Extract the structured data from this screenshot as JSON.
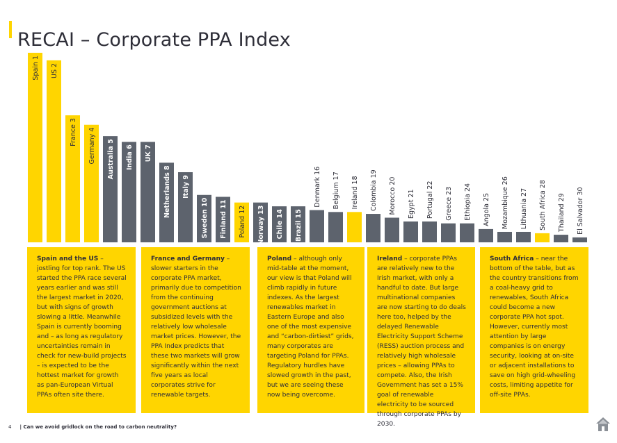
{
  "header": {
    "title": "RECAI – Corporate PPA Index"
  },
  "colors": {
    "highlight": "#FFD500",
    "bar": "#5d636d",
    "text": "#2e2e38"
  },
  "chart_data": {
    "type": "bar",
    "title": "RECAI – Corporate PPA Index",
    "note": "Bar heights are relative index scores (Spain = 100), estimated; no axis shown",
    "categories": [
      "Spain 1",
      "US 2",
      "France 3",
      "Germany 4",
      "Australia 5",
      "India 6",
      "UK 7",
      "Netherlands 8",
      "Italy 9",
      "Sweden 10",
      "Finland 11",
      "Poland 12",
      "Norway 13",
      "Chile 14",
      "Brazil 15",
      "Denmark 16",
      "Belgium 17",
      "Ireland 18",
      "Colombia 19",
      "Morocco 20",
      "Egypt 21",
      "Portugal 22",
      "Greece 23",
      "Ethiopia 24",
      "Angola 25",
      "Mozambique 26",
      "Lithuania 27",
      "South Africa 28",
      "Thailand 29",
      "El Salvador 30"
    ],
    "values": [
      100,
      96,
      67,
      62,
      56,
      53,
      53,
      42,
      37,
      25,
      24,
      21,
      21,
      19,
      19,
      17,
      16,
      16,
      15,
      13,
      11,
      11,
      10,
      10,
      7,
      5.5,
      5.5,
      4.8,
      4,
      2.6
    ],
    "highlighted": [
      "Spain 1",
      "US 2",
      "France 3",
      "Germany 4",
      "Poland 12",
      "Ireland 18",
      "South Africa 28"
    ],
    "ylim": [
      0,
      100
    ],
    "grid": false
  },
  "panels": [
    {
      "lead": "Spain and the US",
      "text": " – jostling for top rank. The US started the PPA race several years earlier and was still the largest market in 2020, but with signs of growth slowing a little. Meanwhile Spain is currently booming and – as long as regulatory uncertainties remain in check for new-build projects – is expected to be the hottest market for growth as pan-European Virtual PPAs often site there."
    },
    {
      "lead": "France and Germany",
      "text": " – slower starters in the corporate PPA market, primarily due to competition from the continuing government auctions at subsidized levels with the relatively low wholesale market prices. However, the PPA Index predicts that these two markets will grow significantly within the next five years as local corporates strive for renewable targets."
    },
    {
      "lead": "Poland",
      "text": " – although only mid-table at the moment, our view is that Poland will climb rapidly in future indexes. As the largest renewables market in Eastern Europe and also one of the most expensive and “carbon-dirtiest” grids, many corporates are targeting Poland for PPAs. Regulatory hurdles have slowed growth in the past, but we are seeing these now being overcome."
    },
    {
      "lead": "Ireland",
      "text": " – corporate PPAs are relatively new to the Irish market, with only a handful to date. But large multinational companies are now starting to do deals here too, helped by the delayed Renewable Electricity Support Scheme (RESS) auction process and relatively high wholesale prices – allowing PPAs to compete. Also, the Irish Government has set a 15% goal of renewable electricity to be sourced through corporate PPAs by 2030."
    },
    {
      "lead": "South Africa",
      "text": " – near the bottom of the table, but as the country transitions from a coal-heavy grid to renewables, South Africa could become a new corporate PPA hot spot. However, currently most attention by large companies is on energy security, looking at on-site or adjacent installations to save on high grid-wheeling costs, limiting appetite for off-site PPAs."
    }
  ],
  "footer": {
    "page": "4",
    "text": "| Can we avoid gridlock on the road to carbon neutrality?"
  },
  "icons": {
    "home": "home-icon"
  }
}
